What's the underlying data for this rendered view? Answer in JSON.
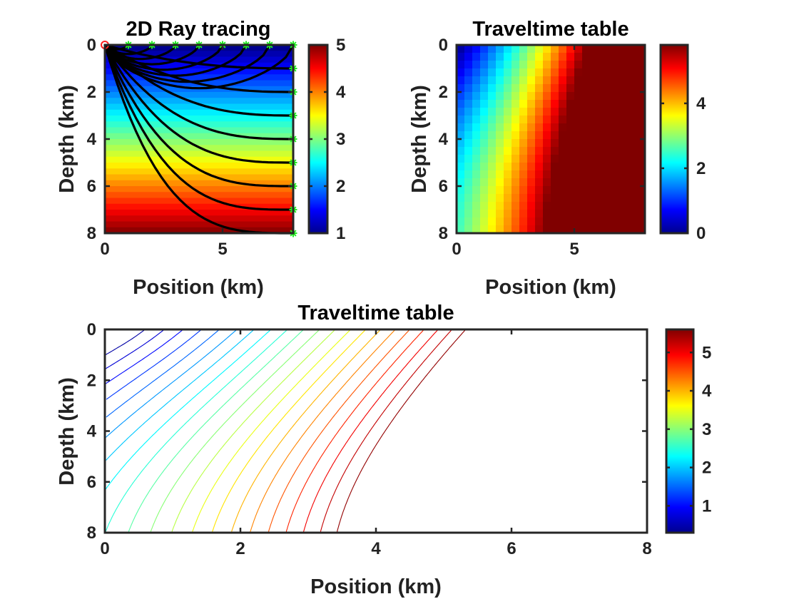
{
  "chart_data": [
    {
      "id": "p1",
      "type": "heatmap",
      "title": "2D Ray tracing",
      "xlabel": "Position (km)",
      "ylabel": "Depth (km)",
      "xlim": [
        0,
        8
      ],
      "ylim": [
        0,
        8
      ],
      "y_reversed": true,
      "xticks": [
        0,
        5
      ],
      "yticks": [
        0,
        2,
        4,
        6,
        8
      ],
      "colorbar": {
        "range": [
          1,
          5
        ],
        "ticks": [
          1,
          2,
          3,
          4,
          5
        ]
      },
      "field": "velocity increasing linearly with depth, 1 at depth 0 to 5 at depth 8",
      "rays_color": "#000000",
      "source": {
        "x": 0,
        "y": 0,
        "color": "#ff2020"
      },
      "receivers": [
        {
          "x": 1,
          "y": 0
        },
        {
          "x": 2,
          "y": 0
        },
        {
          "x": 3,
          "y": 0
        },
        {
          "x": 4,
          "y": 0
        },
        {
          "x": 5,
          "y": 0
        },
        {
          "x": 6,
          "y": 0
        },
        {
          "x": 7,
          "y": 0
        },
        {
          "x": 8,
          "y": 0
        },
        {
          "x": 8,
          "y": 1
        },
        {
          "x": 8,
          "y": 2
        },
        {
          "x": 8,
          "y": 3
        },
        {
          "x": 8,
          "y": 4
        },
        {
          "x": 8,
          "y": 5
        },
        {
          "x": 8,
          "y": 6
        },
        {
          "x": 8,
          "y": 7
        },
        {
          "x": 8,
          "y": 8
        }
      ],
      "receiver_color": "#22ee22"
    },
    {
      "id": "p2",
      "type": "heatmap",
      "title": "Traveltime table",
      "xlabel": "Position (km)",
      "ylabel": "Depth (km)",
      "xlim": [
        0,
        8
      ],
      "ylim": [
        0,
        8
      ],
      "y_reversed": true,
      "xticks": [
        0,
        5
      ],
      "yticks": [
        0,
        2,
        4,
        6,
        8
      ],
      "grid_cells": 24,
      "colorbar": {
        "range": [
          0,
          5.8
        ],
        "ticks": [
          0,
          2,
          4
        ]
      },
      "field": "traveltime from source at (0,0), 0 near source rising to about 5.8 at top-right"
    },
    {
      "id": "p3",
      "type": "contour",
      "title": "Traveltime table",
      "xlabel": "Position (km)",
      "ylabel": "Depth (km)",
      "xlim": [
        0,
        8
      ],
      "ylim": [
        0,
        8
      ],
      "y_reversed": true,
      "xticks": [
        0,
        2,
        4,
        6,
        8
      ],
      "yticks": [
        0,
        2,
        4,
        6,
        8
      ],
      "colorbar": {
        "range": [
          0.3,
          5.6
        ],
        "ticks": [
          1,
          2,
          3,
          4,
          5
        ]
      },
      "contour_levels": [
        0.5,
        0.75,
        1.0,
        1.25,
        1.5,
        1.75,
        2.0,
        2.25,
        2.5,
        2.75,
        3.0,
        3.25,
        3.5,
        3.75,
        4.0,
        4.25,
        4.5,
        4.75,
        5.0,
        5.25,
        5.5
      ]
    }
  ]
}
